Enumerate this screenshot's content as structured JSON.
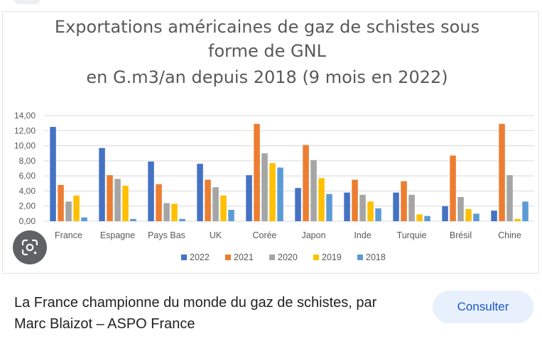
{
  "chart_data": {
    "type": "bar",
    "title_lines": [
      "Exportations américaines de gaz de schistes sous",
      "forme de GNL",
      "en G.m3/an depuis 2018 (9 mois en 2022)"
    ],
    "categories": [
      "France",
      "Espagne",
      "Pays Bas",
      "UK",
      "Corée",
      "Japon",
      "Inde",
      "Turquie",
      "Brésil",
      "Chine"
    ],
    "series": [
      {
        "name": "2022",
        "color": "#4472c4",
        "values": [
          12.5,
          9.7,
          7.9,
          7.6,
          6.1,
          4.4,
          3.8,
          3.8,
          2.0,
          1.4
        ]
      },
      {
        "name": "2021",
        "color": "#ed7d31",
        "values": [
          4.8,
          6.1,
          4.9,
          5.5,
          12.9,
          10.1,
          5.5,
          5.3,
          8.7,
          12.9
        ]
      },
      {
        "name": "2020",
        "color": "#a5a5a5",
        "values": [
          2.6,
          5.6,
          2.4,
          4.5,
          9.0,
          8.1,
          3.5,
          3.5,
          3.2,
          6.1
        ]
      },
      {
        "name": "2019",
        "color": "#ffc000",
        "values": [
          3.4,
          4.7,
          2.3,
          3.4,
          7.7,
          5.7,
          2.6,
          0.9,
          1.6,
          0.3
        ]
      },
      {
        "name": "2018",
        "color": "#5b9bd5",
        "values": [
          0.5,
          0.3,
          0.3,
          1.5,
          7.1,
          3.6,
          1.7,
          0.7,
          1.0,
          2.6
        ]
      }
    ],
    "y_ticks": [
      "0,00",
      "2,00",
      "4,00",
      "6,00",
      "8,00",
      "10,00",
      "12,00",
      "14,00"
    ],
    "ylim": [
      0,
      14
    ],
    "legend_position": "bottom",
    "grid": true
  },
  "caption": {
    "line1": "La France championne du monde du gaz de schistes, par",
    "line2": "Marc Blaizot – ASPO France"
  },
  "buttons": {
    "consult_label": "Consulter"
  },
  "icons": {
    "lens": "google-lens-icon"
  }
}
